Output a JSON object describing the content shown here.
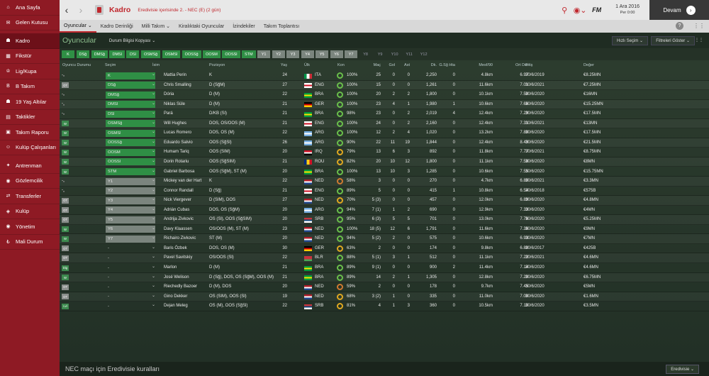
{
  "sidebar": {
    "items": [
      {
        "label": "Ana Sayfa",
        "icon": "home-icon",
        "glyph": "⌂"
      },
      {
        "label": "Gelen Kutusu",
        "icon": "inbox-icon",
        "glyph": "✉"
      },
      {
        "label": "Kadro",
        "icon": "squad-icon",
        "glyph": "☗",
        "active": true
      },
      {
        "label": "Fikstür",
        "icon": "fixtures-icon",
        "glyph": "▦"
      },
      {
        "label": "Lig/Kupa",
        "icon": "trophy-icon",
        "glyph": "♔"
      },
      {
        "label": "B Takım",
        "icon": "b-team-icon",
        "glyph": "B"
      },
      {
        "label": "19 Yaş Altılar",
        "icon": "u19-icon",
        "glyph": "☗"
      },
      {
        "label": "Taktikler",
        "icon": "tactics-icon",
        "glyph": "▤"
      },
      {
        "label": "Takım Raporu",
        "icon": "report-icon",
        "glyph": "▣"
      },
      {
        "label": "Kulüp Çalışanları",
        "icon": "staff-icon",
        "glyph": "☺"
      },
      {
        "label": "Antrenman",
        "icon": "training-icon",
        "glyph": "✦"
      },
      {
        "label": "Gözlemcilik",
        "icon": "scouting-icon",
        "glyph": "◉"
      },
      {
        "label": "Transferler",
        "icon": "transfers-icon",
        "glyph": "⇄"
      },
      {
        "label": "Kulüp",
        "icon": "club-icon",
        "glyph": "◈"
      },
      {
        "label": "Yönetim",
        "icon": "board-icon",
        "glyph": "◉"
      },
      {
        "label": "Mali Durum",
        "icon": "finance-icon",
        "glyph": "₺"
      }
    ]
  },
  "topbar": {
    "title": "Kadro",
    "subtitle": "Eredivisie içerisinde 2. - NEC (E) (2 gün)",
    "date": "1 Ara 2016",
    "day": "Per 0:00",
    "continue_label": "Devam",
    "brand": "FM"
  },
  "tabs": [
    {
      "label": "Oyuncular ⌄",
      "active": true
    },
    {
      "label": "Kadro Derinliği"
    },
    {
      "label": "Milli Takım ⌄"
    },
    {
      "label": "Kiralıktaki Oyuncular"
    },
    {
      "label": "İzindekiler"
    },
    {
      "label": "Takım Toplantısı"
    }
  ],
  "subhead": {
    "title": "Oyuncular",
    "view_button": "Durum Bilgisi Kopyası ⌄",
    "quick_pick": "Hızlı Seçim ⌄",
    "filters": "Filtreleri Göster ⌄"
  },
  "chips": [
    {
      "label": "K",
      "style": "g"
    },
    {
      "label": "DSğ",
      "style": "g"
    },
    {
      "label": "DMSğ",
      "style": "g"
    },
    {
      "label": "DMSl",
      "style": "g"
    },
    {
      "label": "DSl",
      "style": "g"
    },
    {
      "label": "OSMSğ",
      "style": "g"
    },
    {
      "label": "OSMSl",
      "style": "g"
    },
    {
      "label": "OOSSğ",
      "style": "g"
    },
    {
      "label": "OOSM",
      "style": "g"
    },
    {
      "label": "OOSSl",
      "style": "g"
    },
    {
      "label": "STM",
      "style": "g"
    },
    {
      "label": "Y1",
      "style": "gr"
    },
    {
      "label": "Y2",
      "style": "gr"
    },
    {
      "label": "Y3",
      "style": "gr"
    },
    {
      "label": "Y4",
      "style": "gr"
    },
    {
      "label": "Y5",
      "style": "gr"
    },
    {
      "label": "Y6",
      "style": "gr"
    },
    {
      "label": "Y7",
      "style": "gr"
    },
    {
      "label": "Y8",
      "style": "off"
    },
    {
      "label": "Y9",
      "style": "off"
    },
    {
      "label": "Y10",
      "style": "off"
    },
    {
      "label": "Y11",
      "style": "off"
    },
    {
      "label": "Y12",
      "style": "off"
    }
  ],
  "columns": [
    "Oyuncu Durumu",
    "Seçim",
    "İsim",
    "Pozisyon",
    "Yaş",
    "Ülk",
    "Kon",
    "Maç",
    "Gol",
    "Ast",
    "Dk.",
    "G.Sğ Hta",
    "Mesf/90",
    "Ort Der",
    "Bitiş",
    "Değer"
  ],
  "players": [
    {
      "status": [],
      "sel": "K",
      "name": "Mattia Perin",
      "pos": "K",
      "age": "24",
      "nat": "ITA",
      "con": "100%",
      "ring": "g",
      "apps": "25",
      "gls": "0",
      "ast": "0",
      "min": "2,250",
      "gh": "0",
      "dist": "4.8km",
      "rat": "6.97",
      "exp": "30/6/2019",
      "val": "€8.25MN",
      "flag": [
        "#009246",
        "#ffffff",
        "#ce2b37"
      ],
      "fv": true,
      "selstyle": "g"
    },
    {
      "status": [
        "OT"
      ],
      "sel": "DSğ",
      "name": "Chris Smalling",
      "pos": "D (SğM)",
      "age": "27",
      "nat": "ENG",
      "con": "100%",
      "ring": "g",
      "apps": "15",
      "gls": "0",
      "ast": "0",
      "min": "1,261",
      "gh": "0",
      "dist": "11.6km",
      "rat": "7.01",
      "exp": "30/6/2021",
      "val": "€7.25MN",
      "flag": [
        "#ffffff",
        "#ce1124",
        "#ffffff"
      ],
      "selstyle": "g"
    },
    {
      "status": [],
      "sel": "DMSğ",
      "name": "Dória",
      "pos": "D (M)",
      "age": "22",
      "nat": "BRA",
      "con": "100%",
      "ring": "g",
      "apps": "20",
      "gls": "2",
      "ast": "2",
      "min": "1,800",
      "gh": "0",
      "dist": "10.1km",
      "rat": "7.50",
      "exp": "30/6/2020",
      "val": "€16MN",
      "flag": [
        "#009c3b",
        "#ffdf00",
        "#009c3b"
      ],
      "selstyle": "g"
    },
    {
      "status": [],
      "sel": "DMSl",
      "name": "Niklas Süle",
      "pos": "D (M)",
      "age": "21",
      "nat": "GER",
      "con": "100%",
      "ring": "g",
      "apps": "23",
      "gls": "4",
      "ast": "1",
      "min": "1,980",
      "gh": "1",
      "dist": "10.6km",
      "rat": "7.66",
      "exp": "30/6/2020",
      "val": "€15.25MN",
      "flag": [
        "#000000",
        "#dd0000",
        "#ffce00"
      ],
      "selstyle": "g"
    },
    {
      "status": [],
      "sel": "DSl",
      "name": "Pará",
      "pos": "D/KB (Sl)",
      "age": "21",
      "nat": "BRA",
      "con": "98%",
      "ring": "g",
      "apps": "23",
      "gls": "0",
      "ast": "2",
      "min": "2,019",
      "gh": "4",
      "dist": "12.4km",
      "rat": "7.29",
      "exp": "30/6/2020",
      "val": "€17.5MN",
      "flag": [
        "#009c3b",
        "#ffdf00",
        "#009c3b"
      ],
      "selstyle": "g"
    },
    {
      "status": [
        "W"
      ],
      "sel": "OSMSğ",
      "name": "Will Hughes",
      "pos": "DOS, OS/OOS (M)",
      "age": "21",
      "nat": "ENG",
      "con": "100%",
      "ring": "g",
      "apps": "24",
      "gls": "0",
      "ast": "2",
      "min": "2,160",
      "gh": "0",
      "dist": "12.4km",
      "rat": "7.31",
      "exp": "30/6/2021",
      "val": "€13MN",
      "flag": [
        "#ffffff",
        "#ce1124",
        "#ffffff"
      ],
      "selstyle": "g"
    },
    {
      "status": [
        "W"
      ],
      "sel": "OSMSl",
      "name": "Lucas Romero",
      "pos": "DOS, OS (M)",
      "age": "22",
      "nat": "ARG",
      "con": "100%",
      "ring": "g",
      "apps": "12",
      "gls": "2",
      "ast": "4",
      "min": "1,020",
      "gh": "0",
      "dist": "13.2km",
      "rat": "7.80",
      "exp": "30/6/2020",
      "val": "€17.5MN",
      "flag": [
        "#74acdf",
        "#ffffff",
        "#74acdf"
      ],
      "selstyle": "g"
    },
    {
      "status": [
        "SKI",
        "W"
      ],
      "sel": "OOSSğ",
      "name": "Eduardo Salvio",
      "pos": "OOS (SğSl)",
      "age": "26",
      "nat": "ARG",
      "con": "90%",
      "ring": "g",
      "apps": "22",
      "gls": "11",
      "ast": "19",
      "min": "1,844",
      "gh": "0",
      "dist": "12.4km",
      "rat": "8.49",
      "exp": "30/6/2020",
      "val": "€21.5MN",
      "flag": [
        "#74acdf",
        "#ffffff",
        "#74acdf"
      ],
      "selstyle": "g"
    },
    {
      "status": [
        "SKI",
        "W"
      ],
      "sel": "OOSM",
      "name": "Humam Tariq",
      "pos": "OOS (SIM)",
      "age": "20",
      "nat": "IRQ",
      "con": "79%",
      "ring": "y",
      "apps": "13",
      "gls": "6",
      "ast": "3",
      "min": "892",
      "gh": "0",
      "dist": "11.8km",
      "rat": "7.77",
      "exp": "30/6/2021",
      "val": "€8.75MN",
      "flag": [
        "#ce1126",
        "#ffffff",
        "#000000"
      ],
      "selstyle": "g"
    },
    {
      "status": [
        "SKI",
        "W"
      ],
      "sel": "OOSSl",
      "name": "Dorin Rotariu",
      "pos": "OOS (SğSIM)",
      "age": "21",
      "nat": "ROU",
      "con": "82%",
      "ring": "y",
      "apps": "20",
      "gls": "10",
      "ast": "12",
      "min": "1,800",
      "gh": "0",
      "dist": "11.1km",
      "rat": "7.58",
      "exp": "30/6/2020",
      "val": "€8MN",
      "flag": [
        "#002b7f",
        "#fcd116",
        "#ce1126"
      ],
      "fv": true,
      "selstyle": "g"
    },
    {
      "status": [
        "W"
      ],
      "sel": "STM",
      "name": "Gabriel Barbosa",
      "pos": "OOS (SğM), ST (M)",
      "age": "20",
      "nat": "BRA",
      "con": "100%",
      "ring": "g",
      "apps": "13",
      "gls": "10",
      "ast": "3",
      "min": "1,285",
      "gh": "0",
      "dist": "10.6km",
      "rat": "7.55",
      "exp": "30/6/2020",
      "val": "€15.75MN",
      "flag": [
        "#009c3b",
        "#ffdf00",
        "#009c3b"
      ],
      "selstyle": "g"
    },
    {
      "status": [],
      "sel": "Y1",
      "name": "Mickey van der Hart",
      "pos": "K",
      "age": "22",
      "nat": "NED",
      "con": "58%",
      "ring": "o",
      "apps": "3",
      "gls": "0",
      "ast": "0",
      "min": "270",
      "gh": "0",
      "dist": "4.7km",
      "rat": "6.80",
      "exp": "30/6/2021",
      "val": "€3.3MN",
      "flag": [
        "#ae1c28",
        "#ffffff",
        "#21468b"
      ],
      "selstyle": "gr"
    },
    {
      "status": [],
      "sel": "Y2",
      "name": "Connor Randall",
      "pos": "D (Sğ)",
      "age": "21",
      "nat": "ENG",
      "con": "89%",
      "ring": "g",
      "apps": "5",
      "gls": "0",
      "ast": "0",
      "min": "415",
      "gh": "1",
      "dist": "10.8km",
      "rat": "6.54",
      "exp": "30/6/2018",
      "val": "€575B",
      "flag": [
        "#ffffff",
        "#ce1124",
        "#ffffff"
      ],
      "selstyle": "gr"
    },
    {
      "status": [
        "OT"
      ],
      "sel": "Y3",
      "name": "Nick Viergever",
      "pos": "D (SIM), DOS",
      "age": "27",
      "nat": "NED",
      "con": "70%",
      "ring": "y",
      "apps": "5 (3)",
      "gls": "0",
      "ast": "0",
      "min": "457",
      "gh": "0",
      "dist": "12.0km",
      "rat": "6.89",
      "exp": "30/6/2020",
      "val": "€4.8MN",
      "flag": [
        "#ae1c28",
        "#ffffff",
        "#21468b"
      ],
      "selstyle": "gr"
    },
    {
      "status": [
        "OT"
      ],
      "sel": "Y4",
      "name": "Adrián Cubas",
      "pos": "DOS, OS (SğM)",
      "age": "20",
      "nat": "ARG",
      "con": "94%",
      "ring": "g",
      "apps": "7 (1)",
      "gls": "1",
      "ast": "2",
      "min": "690",
      "gh": "0",
      "dist": "12.9km",
      "rat": "7.33",
      "exp": "30/6/2020",
      "val": "€4MN",
      "flag": [
        "#74acdf",
        "#ffffff",
        "#74acdf"
      ],
      "selstyle": "gr"
    },
    {
      "status": [
        "OT"
      ],
      "sel": "Y5",
      "name": "Andrija Zivkovic",
      "pos": "OS (Sl), OOS (SğSIM)",
      "age": "20",
      "nat": "SRB",
      "con": "95%",
      "ring": "g",
      "apps": "6 (3)",
      "gls": "5",
      "ast": "5",
      "min": "701",
      "gh": "0",
      "dist": "13.0km",
      "rat": "7.76",
      "exp": "30/6/2020",
      "val": "€5.25MN",
      "flag": [
        "#c6363c",
        "#0c4076",
        "#ffffff"
      ],
      "selstyle": "gr"
    },
    {
      "status": [
        "W"
      ],
      "sel": "Y6",
      "name": "Davy Klaassen",
      "pos": "OS/OOS (M), ST (M)",
      "age": "23",
      "nat": "NED",
      "con": "100%",
      "ring": "g",
      "apps": "18 (5)",
      "gls": "12",
      "ast": "6",
      "min": "1,791",
      "gh": "0",
      "dist": "11.6km",
      "rat": "7.36",
      "exp": "30/6/2020",
      "val": "€9MN",
      "flag": [
        "#ae1c28",
        "#ffffff",
        "#21468b"
      ],
      "selstyle": "gr"
    },
    {
      "status": [
        "W"
      ],
      "sel": "Y7",
      "name": "Richairo Zivkovic",
      "pos": "ST (M)",
      "age": "20",
      "nat": "NED",
      "con": "94%",
      "ring": "g",
      "apps": "5 (2)",
      "gls": "2",
      "ast": "0",
      "min": "575",
      "gh": "0",
      "dist": "10.6km",
      "rat": "6.93",
      "exp": "30/6/2020",
      "val": "€7MN",
      "flag": [
        "#ae1c28",
        "#ffffff",
        "#21468b"
      ],
      "selstyle": "gr"
    },
    {
      "status": [
        "OT",
        "OT"
      ],
      "sel": "-",
      "name": "Baris Özbek",
      "pos": "DOS, OS (M)",
      "age": "30",
      "nat": "GER",
      "con": "63%",
      "ring": "y",
      "apps": "2",
      "gls": "0",
      "ast": "0",
      "min": "174",
      "gh": "0",
      "dist": "9.8km",
      "rat": "6.80",
      "exp": "30/6/2017",
      "val": "€425B",
      "flag": [
        "#000000",
        "#dd0000",
        "#ffce00"
      ]
    },
    {
      "status": [
        "OT"
      ],
      "sel": "-",
      "name": "Pavel Savitskiy",
      "pos": "OS/OOS (Sl)",
      "age": "22",
      "nat": "BLR",
      "con": "88%",
      "ring": "g",
      "apps": "5 (1)",
      "gls": "3",
      "ast": "1",
      "min": "512",
      "gh": "0",
      "dist": "11.1km",
      "rat": "7.22",
      "exp": "30/6/2021",
      "val": "€4.6MN",
      "flag": [
        "#c8313e",
        "#c8313e",
        "#4aa657"
      ]
    },
    {
      "status": [
        "W",
        "Dig"
      ],
      "sel": "-",
      "name": "Marlon",
      "pos": "D (M)",
      "age": "21",
      "nat": "BRA",
      "con": "89%",
      "ring": "g",
      "apps": "9 (1)",
      "gls": "0",
      "ast": "0",
      "min": "900",
      "gh": "2",
      "dist": "11.4km",
      "rat": "7.14",
      "exp": "30/6/2020",
      "val": "€4.6MN",
      "flag": [
        "#009c3b",
        "#ffdf00",
        "#009c3b"
      ]
    },
    {
      "status": [
        "W"
      ],
      "sel": "-",
      "name": "José Welison",
      "pos": "D (Sğ), DOS, OS (SğM), OOS (M)",
      "age": "21",
      "nat": "BRA",
      "con": "89%",
      "ring": "g",
      "apps": "14",
      "gls": "2",
      "ast": "1",
      "min": "1,305",
      "gh": "0",
      "dist": "12.8km",
      "rat": "7.20",
      "exp": "30/6/2020",
      "val": "€6.75MN",
      "flag": [
        "#009c3b",
        "#ffdf00",
        "#009c3b"
      ]
    },
    {
      "status": [
        "SKI",
        "OT"
      ],
      "sel": "-",
      "name": "Riechedly Bazoer",
      "pos": "D (M), DOS",
      "age": "20",
      "nat": "NED",
      "con": "59%",
      "ring": "o",
      "apps": "2",
      "gls": "0",
      "ast": "0",
      "min": "178",
      "gh": "0",
      "dist": "9.7km",
      "rat": "7.45",
      "exp": "30/6/2020",
      "val": "€5MN",
      "flag": [
        "#ae1c28",
        "#ffffff",
        "#21468b"
      ]
    },
    {
      "status": [
        "OT"
      ],
      "sel": "-",
      "name": "Gino Dekker",
      "pos": "OS (SIM), OOS (Sl)",
      "age": "19",
      "nat": "NED",
      "con": "68%",
      "ring": "y",
      "apps": "3 (2)",
      "gls": "1",
      "ast": "0",
      "min": "335",
      "gh": "0",
      "dist": "11.0km",
      "rat": "7.00",
      "exp": "30/6/2020",
      "val": "€1.6MN",
      "flag": [
        "#ae1c28",
        "#ffffff",
        "#21468b"
      ]
    },
    {
      "status": [
        "W",
        "OT",
        "Lvl"
      ],
      "sel": "-",
      "name": "Dejan Meleg",
      "pos": "OS (M), OOS (SğSl)",
      "age": "22",
      "nat": "SRB",
      "con": "81%",
      "ring": "y",
      "apps": "4",
      "gls": "1",
      "ast": "3",
      "min": "360",
      "gh": "0",
      "dist": "10.5km",
      "rat": "7.10",
      "exp": "30/6/2020",
      "val": "€3.5MN",
      "flag": [
        "#c6363c",
        "#0c4076",
        "#ffffff"
      ]
    }
  ],
  "footer": {
    "text": "NEC maçı için Eredivisie kuralları",
    "button": "Eredivisie ⌄"
  }
}
